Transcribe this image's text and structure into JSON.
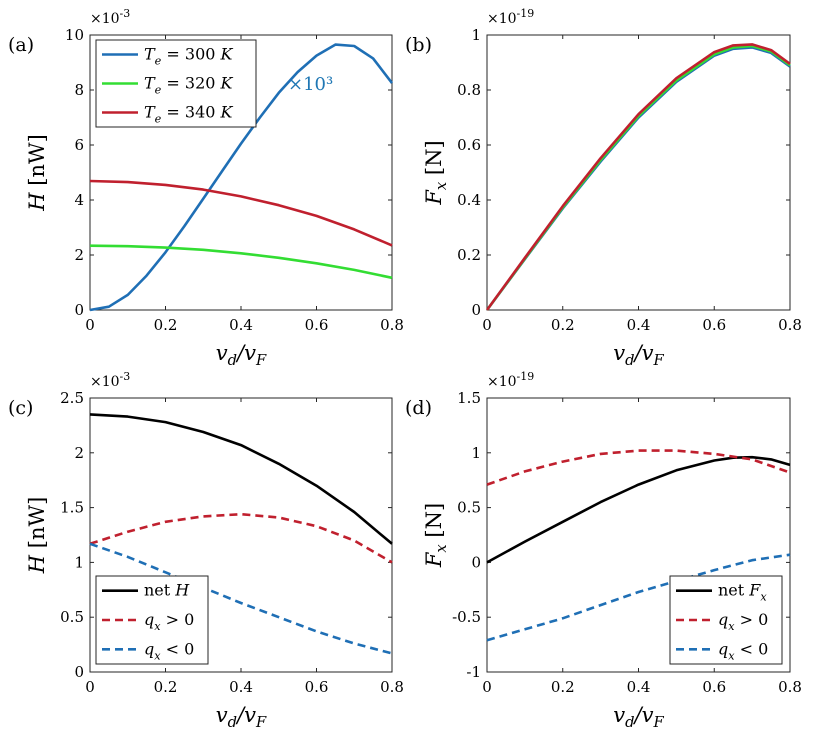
{
  "chart_data": [
    {
      "panel": "(a)",
      "type": "line",
      "x_tick_labels": [
        "0",
        "0.2",
        "0.4",
        "0.6",
        "0.8"
      ],
      "y_tick_labels": [
        "0",
        "2",
        "4",
        "6",
        "8",
        "10"
      ],
      "xlim": [
        0,
        0.8
      ],
      "ylim": [
        0,
        10
      ],
      "y_exponent": "×10",
      "y_exponent_power": "-3",
      "xlabel": "v_d/v_F",
      "ylabel": "H [nW]",
      "annotation": "×10³",
      "annotation_color": "#1f77b4",
      "legend_position": "top-left",
      "series": [
        {
          "name": "T_e = 300 K",
          "legend_label": "T_e = 300 K",
          "color": "#1f6fb5",
          "style": "solid",
          "x": [
            0,
            0.05,
            0.1,
            0.15,
            0.2,
            0.25,
            0.3,
            0.35,
            0.4,
            0.45,
            0.5,
            0.55,
            0.6,
            0.65,
            0.7,
            0.75,
            0.8
          ],
          "y": [
            0,
            0.12,
            0.55,
            1.25,
            2.1,
            3.05,
            4.05,
            5.05,
            6.05,
            7.0,
            7.9,
            8.65,
            9.25,
            9.65,
            9.6,
            9.15,
            8.25
          ]
        },
        {
          "name": "T_e = 320 K",
          "legend_label": "T_e = 320 K",
          "color": "#33dd33",
          "style": "solid",
          "x": [
            0,
            0.1,
            0.2,
            0.3,
            0.4,
            0.5,
            0.6,
            0.7,
            0.8
          ],
          "y": [
            2.34,
            2.32,
            2.27,
            2.19,
            2.06,
            1.9,
            1.7,
            1.46,
            1.17
          ]
        },
        {
          "name": "T_e = 340 K",
          "legend_label": "T_e = 340 K",
          "color": "#c0202e",
          "style": "solid",
          "x": [
            0,
            0.1,
            0.2,
            0.3,
            0.4,
            0.5,
            0.6,
            0.7,
            0.8
          ],
          "y": [
            4.69,
            4.65,
            4.55,
            4.38,
            4.13,
            3.81,
            3.42,
            2.93,
            2.35
          ]
        }
      ]
    },
    {
      "panel": "(b)",
      "type": "line",
      "x_tick_labels": [
        "0",
        "0.2",
        "0.4",
        "0.6",
        "0.8"
      ],
      "y_tick_labels": [
        "0",
        "0.2",
        "0.4",
        "0.6",
        "0.8",
        "1"
      ],
      "xlim": [
        0,
        0.8
      ],
      "ylim": [
        0,
        1
      ],
      "y_exponent": "×10",
      "y_exponent_power": "-19",
      "xlabel": "v_d/v_F",
      "ylabel": "F_x [N]",
      "series": [
        {
          "color": "#1f6fb5",
          "style": "solid",
          "x": [
            0,
            0.1,
            0.2,
            0.3,
            0.4,
            0.5,
            0.6,
            0.65,
            0.7,
            0.75,
            0.8
          ],
          "y": [
            0,
            0.185,
            0.37,
            0.54,
            0.7,
            0.83,
            0.925,
            0.95,
            0.955,
            0.935,
            0.885
          ]
        },
        {
          "color": "#33dd33",
          "style": "solid",
          "x": [
            0,
            0.1,
            0.2,
            0.3,
            0.4,
            0.5,
            0.6,
            0.65,
            0.7,
            0.75,
            0.8
          ],
          "y": [
            0,
            0.187,
            0.373,
            0.545,
            0.705,
            0.835,
            0.93,
            0.955,
            0.96,
            0.94,
            0.89
          ]
        },
        {
          "color": "#c0202e",
          "style": "solid",
          "x": [
            0,
            0.1,
            0.2,
            0.3,
            0.4,
            0.5,
            0.6,
            0.65,
            0.7,
            0.75,
            0.8
          ],
          "y": [
            0,
            0.19,
            0.378,
            0.552,
            0.712,
            0.843,
            0.938,
            0.962,
            0.966,
            0.945,
            0.895
          ]
        }
      ]
    },
    {
      "panel": "(c)",
      "type": "line",
      "x_tick_labels": [
        "0",
        "0.2",
        "0.4",
        "0.6",
        "0.8"
      ],
      "y_tick_labels": [
        "0",
        "0.5",
        "1",
        "1.5",
        "2",
        "2.5"
      ],
      "xlim": [
        0,
        0.8
      ],
      "ylim": [
        0,
        2.5
      ],
      "y_exponent": "×10",
      "y_exponent_power": "-3",
      "xlabel": "v_d/v_F",
      "ylabel": "H [nW]",
      "legend_position": "bottom-left",
      "series": [
        {
          "name": "net H",
          "legend_label": "net H",
          "color": "#000000",
          "style": "solid",
          "x": [
            0,
            0.1,
            0.2,
            0.3,
            0.4,
            0.5,
            0.6,
            0.7,
            0.8
          ],
          "y": [
            2.35,
            2.33,
            2.28,
            2.19,
            2.07,
            1.9,
            1.7,
            1.46,
            1.17
          ]
        },
        {
          "name": "q_x > 0",
          "legend_label": "q_x > 0",
          "color": "#c0202e",
          "style": "dashed",
          "x": [
            0,
            0.1,
            0.2,
            0.3,
            0.4,
            0.5,
            0.6,
            0.7,
            0.8
          ],
          "y": [
            1.17,
            1.28,
            1.37,
            1.42,
            1.44,
            1.41,
            1.33,
            1.2,
            1.0
          ]
        },
        {
          "name": "q_x < 0",
          "legend_label": "q_x < 0",
          "color": "#1f6fb5",
          "style": "dashed",
          "x": [
            0,
            0.1,
            0.2,
            0.3,
            0.4,
            0.5,
            0.6,
            0.7,
            0.8
          ],
          "y": [
            1.17,
            1.05,
            0.91,
            0.77,
            0.63,
            0.5,
            0.37,
            0.26,
            0.17
          ]
        }
      ]
    },
    {
      "panel": "(d)",
      "type": "line",
      "x_tick_labels": [
        "0",
        "0.2",
        "0.4",
        "0.6",
        "0.8"
      ],
      "y_tick_labels": [
        "-1",
        "-0.5",
        "0",
        "0.5",
        "1",
        "1.5"
      ],
      "xlim": [
        0,
        0.8
      ],
      "ylim": [
        -1,
        1.5
      ],
      "y_exponent": "×10",
      "y_exponent_power": "-19",
      "xlabel": "v_d/v_F",
      "ylabel": "F_x [N]",
      "legend_position": "bottom-right",
      "series": [
        {
          "name": "net F_x",
          "legend_label": "net F_x",
          "color": "#000000",
          "style": "solid",
          "x": [
            0,
            0.1,
            0.2,
            0.3,
            0.4,
            0.5,
            0.6,
            0.65,
            0.7,
            0.75,
            0.8
          ],
          "y": [
            0,
            0.19,
            0.37,
            0.55,
            0.71,
            0.84,
            0.93,
            0.955,
            0.96,
            0.94,
            0.89
          ]
        },
        {
          "name": "q_x > 0",
          "legend_label": "q_x > 0",
          "color": "#c0202e",
          "style": "dashed",
          "x": [
            0,
            0.1,
            0.2,
            0.3,
            0.4,
            0.5,
            0.6,
            0.7,
            0.8
          ],
          "y": [
            0.71,
            0.83,
            0.92,
            0.99,
            1.02,
            1.02,
            0.99,
            0.94,
            0.82
          ]
        },
        {
          "name": "q_x < 0",
          "legend_label": "q_x < 0",
          "color": "#1f6fb5",
          "style": "dashed",
          "x": [
            0,
            0.1,
            0.2,
            0.3,
            0.4,
            0.5,
            0.6,
            0.7,
            0.8
          ],
          "y": [
            -0.71,
            -0.61,
            -0.51,
            -0.39,
            -0.27,
            -0.17,
            -0.07,
            0.02,
            0.07
          ]
        }
      ]
    }
  ]
}
